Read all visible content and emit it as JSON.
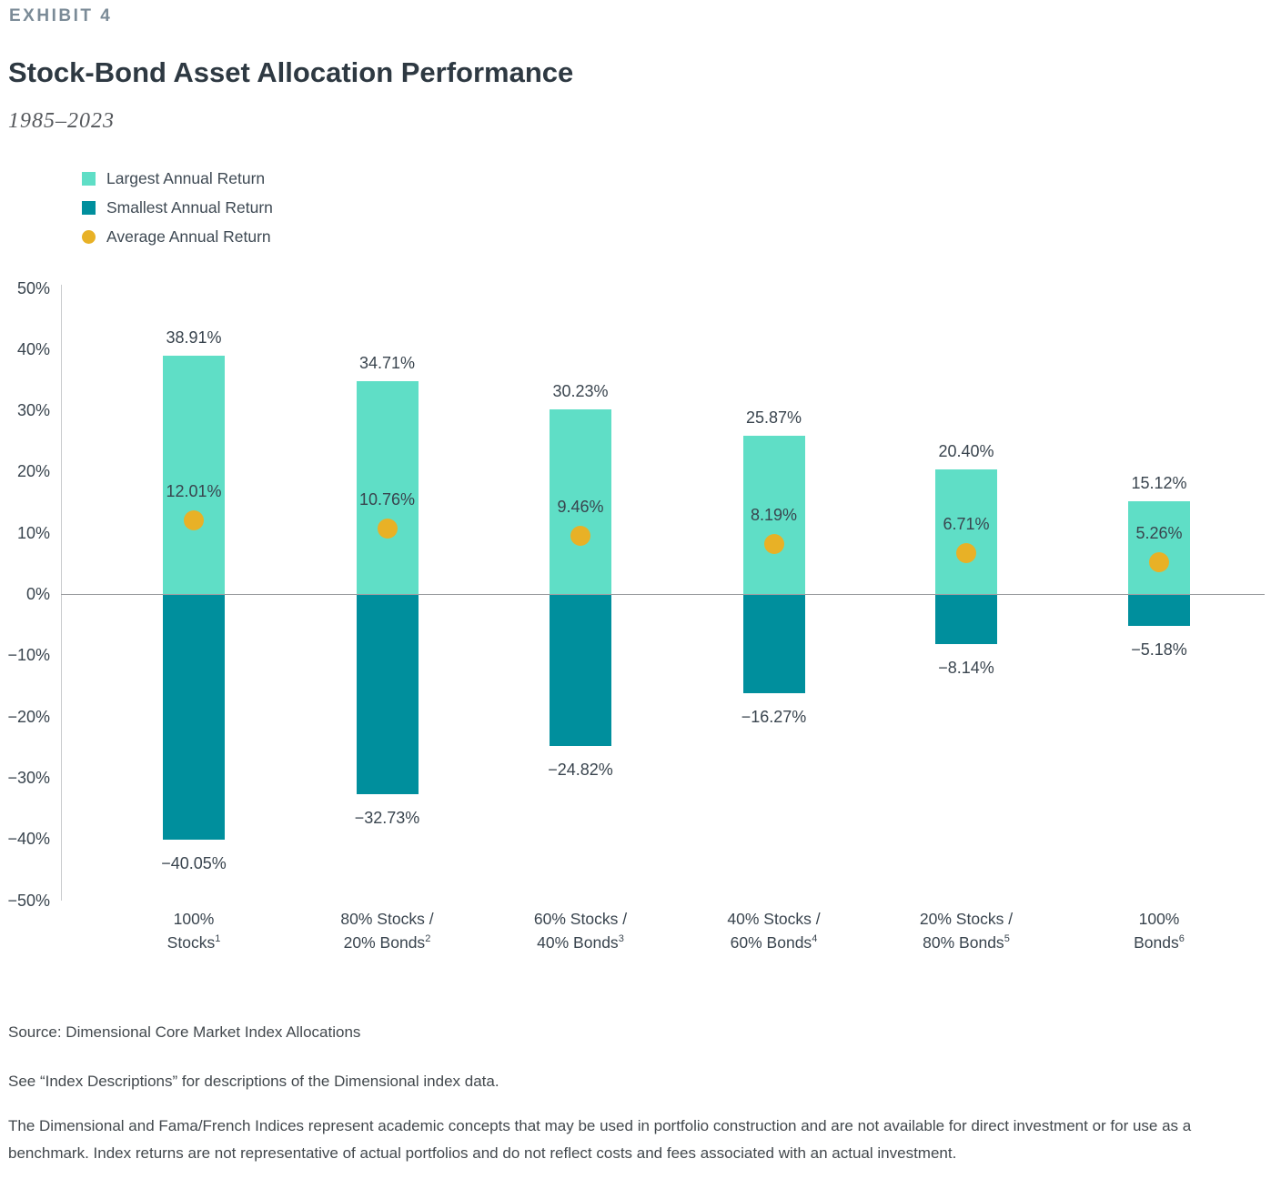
{
  "header": {
    "exhibit": "EXHIBIT 4",
    "title": "Stock-Bond Asset Allocation Performance",
    "subtitle": "1985–2023"
  },
  "legend": {
    "items": [
      {
        "key": "largest",
        "label": "Largest Annual Return",
        "swatch": "square",
        "color": "#5FDEC6"
      },
      {
        "key": "smallest",
        "label": "Smallest Annual Return",
        "swatch": "square",
        "color": "#008F9D"
      },
      {
        "key": "average",
        "label": "Average Annual Return",
        "swatch": "circle",
        "color": "#E8B126"
      }
    ]
  },
  "chart_data": {
    "type": "bar",
    "title": "Stock-Bond Asset Allocation Performance",
    "subtitle": "1985–2023",
    "categories": [
      {
        "line1": "100%",
        "line2": "Stocks",
        "footnote": "1"
      },
      {
        "line1": "80% Stocks /",
        "line2": "20% Bonds",
        "footnote": "2"
      },
      {
        "line1": "60% Stocks /",
        "line2": "40% Bonds",
        "footnote": "3"
      },
      {
        "line1": "40% Stocks /",
        "line2": "60% Bonds",
        "footnote": "4"
      },
      {
        "line1": "20% Stocks /",
        "line2": "80% Bonds",
        "footnote": "5"
      },
      {
        "line1": "100%",
        "line2": "Bonds",
        "footnote": "6"
      }
    ],
    "series": [
      {
        "name": "Largest Annual Return",
        "values": [
          38.91,
          34.71,
          30.23,
          25.87,
          20.4,
          15.12
        ],
        "labels": [
          "38.91%",
          "34.71%",
          "30.23%",
          "25.87%",
          "20.40%",
          "15.12%"
        ],
        "color": "#5FDEC6"
      },
      {
        "name": "Smallest Annual Return",
        "values": [
          -40.05,
          -32.73,
          -24.82,
          -16.27,
          -8.14,
          -5.18
        ],
        "labels": [
          "−40.05%",
          "−32.73%",
          "−24.82%",
          "−16.27%",
          "−8.14%",
          "−5.18%"
        ],
        "color": "#008F9D"
      },
      {
        "name": "Average Annual Return",
        "values": [
          12.01,
          10.76,
          9.46,
          8.19,
          6.71,
          5.26
        ],
        "labels": [
          "12.01%",
          "10.76%",
          "9.46%",
          "8.19%",
          "6.71%",
          "5.26%"
        ],
        "color": "#E8B126",
        "marker": "circle"
      }
    ],
    "ylim": [
      -50,
      50
    ],
    "yticks": [
      {
        "label": "50%",
        "value": 50
      },
      {
        "label": "40%",
        "value": 40
      },
      {
        "label": "30%",
        "value": 30
      },
      {
        "label": "20%",
        "value": 20
      },
      {
        "label": "10%",
        "value": 10
      },
      {
        "label": "0%",
        "value": 0
      },
      {
        "label": "−10%",
        "value": -10
      },
      {
        "label": "−20%",
        "value": -20
      },
      {
        "label": "−30%",
        "value": -30
      },
      {
        "label": "−40%",
        "value": -40
      },
      {
        "label": "−50%",
        "value": -50
      }
    ],
    "grid": false,
    "legend_position": "top-left"
  },
  "footer": {
    "source": "Source: Dimensional Core Market Index Allocations",
    "see_note": "See “Index Descriptions” for descriptions of the Dimensional index data.",
    "disclaimer": "The Dimensional and Fama/French Indices represent academic concepts that may be used in portfolio construction and are not available for direct investment or for use as a benchmark. Index returns are not representative of actual portfolios and do not reflect costs and fees associated with an actual investment."
  },
  "colors": {
    "largest_bar": "#5FDEC6",
    "smallest_bar": "#008F9D",
    "average_dot": "#E8B126",
    "axis_line": "#C9CBCD",
    "zero_line": "#9B9DA0",
    "label_text": "#39444E",
    "title_text": "#2E3942",
    "exhibit_text": "#7B8B97"
  }
}
